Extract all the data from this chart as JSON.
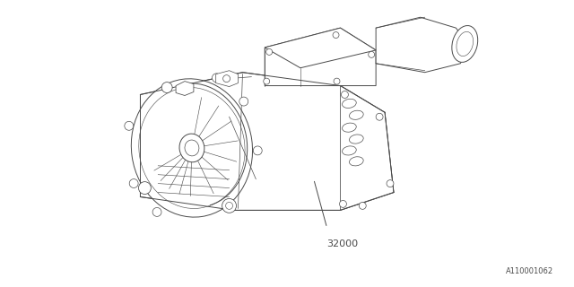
{
  "background_color": "#ffffff",
  "line_color": "#4a4a4a",
  "line_width": 0.7,
  "part_number": "32000",
  "diagram_id": "A110001062",
  "fig_width": 6.4,
  "fig_height": 3.2,
  "dpi": 100
}
